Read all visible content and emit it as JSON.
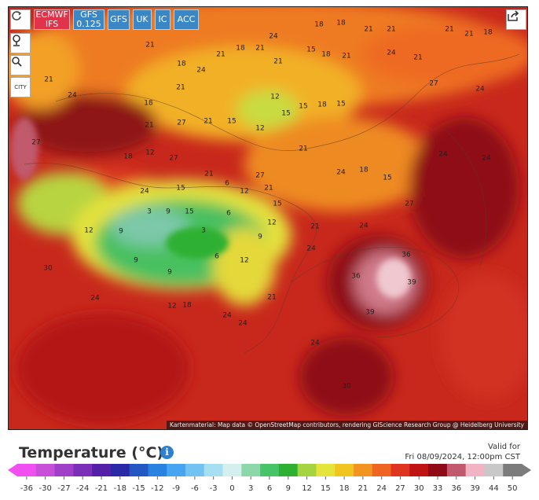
{
  "toolbar": {
    "models": [
      [
        "ECMWF",
        "IFS"
      ],
      [
        "GFS",
        "0.125"
      ],
      [
        "GFS"
      ],
      [
        "UK"
      ],
      [
        "IC"
      ],
      [
        "ACC"
      ]
    ],
    "city": "CITY"
  },
  "map": {
    "labels": [
      18,
      18,
      21,
      21,
      21,
      21,
      18,
      24,
      21,
      18,
      24,
      21,
      18,
      21,
      21,
      15,
      18,
      21,
      24,
      21,
      21,
      24,
      21,
      15,
      18,
      15,
      12,
      12,
      15,
      27,
      24,
      18,
      21,
      27,
      21,
      15,
      27,
      18,
      12,
      27,
      21,
      27,
      21,
      24,
      18,
      15,
      24,
      24,
      24,
      15,
      6,
      12,
      21,
      15,
      3,
      9,
      15,
      6,
      12,
      9,
      3,
      12,
      9,
      9,
      9,
      6,
      12,
      21,
      24,
      27,
      36,
      36,
      39,
      39,
      24,
      21,
      12,
      18,
      24,
      24,
      24,
      30,
      24,
      30
    ],
    "attribution": "Kartenmaterial: Map data © OpenStreetMap contributors, rendering GIScience Research Group @ Heidelberg University"
  },
  "legend": {
    "title": "Temperature (°C)",
    "valid_label": "Valid for",
    "valid_time": "Fri 08/09/2024, 12:00pm CST",
    "ticks": [
      -36,
      -30,
      -27,
      -24,
      -21,
      -18,
      -15,
      -12,
      -9,
      -6,
      -3,
      0,
      3,
      6,
      9,
      12,
      15,
      18,
      21,
      24,
      27,
      30,
      33,
      36,
      39,
      44,
      50
    ],
    "colors": [
      "#f050f0",
      "#c850d8",
      "#a040c8",
      "#7c30b8",
      "#5420a8",
      "#2a2aa8",
      "#2456c4",
      "#2a82e0",
      "#46a4f0",
      "#72c2f2",
      "#a6def2",
      "#d4f0ee",
      "#8cd8a8",
      "#48c468",
      "#2eb032",
      "#a4d440",
      "#e4e43c",
      "#f2c420",
      "#f29420",
      "#ee6420",
      "#de3420",
      "#c01414",
      "#8e0a14",
      "#c05a6c",
      "#f0b4c4",
      "#c8c8c8",
      "#7c7c7c"
    ]
  }
}
